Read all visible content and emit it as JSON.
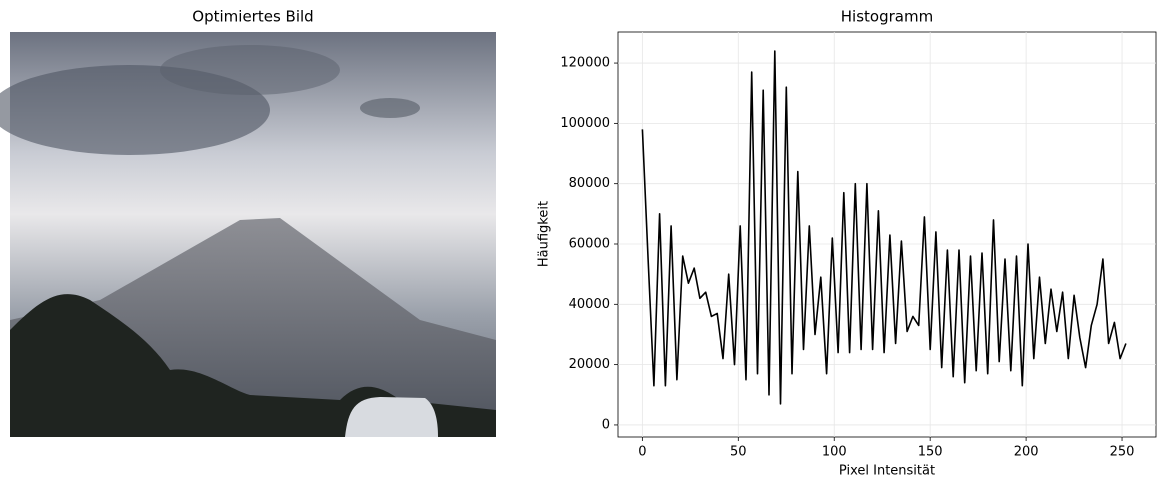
{
  "image_title": "Optimiertes Bild",
  "chart_data": {
    "type": "line",
    "title": "Histogramm",
    "x_label": "Pixel Intensität",
    "y_label": "Häufigkeit",
    "color": "#000000",
    "grid": true,
    "x": [
      0,
      3,
      6,
      9,
      12,
      15,
      18,
      21,
      24,
      27,
      30,
      33,
      36,
      39,
      42,
      45,
      48,
      51,
      54,
      57,
      60,
      63,
      66,
      69,
      72,
      75,
      78,
      81,
      84,
      87,
      90,
      93,
      96,
      99,
      102,
      105,
      108,
      111,
      114,
      117,
      120,
      123,
      126,
      129,
      132,
      135,
      138,
      141,
      144,
      147,
      150,
      153,
      156,
      159,
      162,
      165,
      168,
      171,
      174,
      177,
      180,
      183,
      186,
      189,
      192,
      195,
      198,
      201,
      204,
      207,
      210,
      213,
      216,
      219,
      222,
      225,
      228,
      231,
      234,
      237,
      240,
      243,
      246,
      249,
      252
    ],
    "values": [
      98000,
      55000,
      13000,
      70000,
      13000,
      66000,
      15000,
      56000,
      47000,
      52000,
      42000,
      44000,
      36000,
      37000,
      22000,
      50000,
      20000,
      66000,
      15000,
      117000,
      17000,
      111000,
      10000,
      124000,
      7000,
      112000,
      17000,
      84000,
      25000,
      66000,
      30000,
      49000,
      17000,
      62000,
      24000,
      77000,
      24000,
      80000,
      25000,
      80000,
      25000,
      71000,
      24000,
      63000,
      27000,
      61000,
      31000,
      36000,
      33000,
      69000,
      25000,
      64000,
      19000,
      58000,
      16000,
      58000,
      14000,
      56000,
      18000,
      57000,
      17000,
      68000,
      21000,
      55000,
      18000,
      56000,
      13000,
      60000,
      22000,
      49000,
      27000,
      45000,
      31000,
      44000,
      22000,
      43000,
      29000,
      19000,
      33000,
      40000,
      55000,
      27000,
      34000,
      22000,
      27000
    ],
    "xlim": [
      -12.7,
      267.7
    ],
    "ylim": [
      -4000,
      130300
    ],
    "xticks": [
      0,
      50,
      100,
      150,
      200,
      250
    ],
    "yticks": [
      0,
      20000,
      40000,
      60000,
      80000,
      100000,
      120000
    ]
  }
}
